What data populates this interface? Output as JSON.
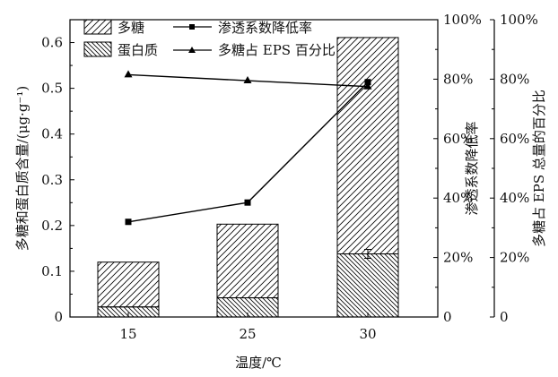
{
  "chart_data": {
    "type": "bar",
    "categories": [
      "15",
      "25",
      "30"
    ],
    "xlabel": "温度/℃",
    "ylabel": "多糖和蛋白质含量/(μg·g⁻¹)",
    "ylabel_right1": "渗透系数降低率",
    "ylabel_right2": "多糖占 EPS 总量的百分比",
    "ylim": [
      0,
      0.65
    ],
    "yticks": [
      "0",
      "0.1",
      "0.2",
      "0.3",
      "0.4",
      "0.5",
      "0.6"
    ],
    "y2lim": [
      0,
      1.0
    ],
    "y2ticks": [
      "0",
      "20%",
      "40%",
      "60%",
      "80%",
      "100%"
    ],
    "y3lim": [
      0,
      1.0
    ],
    "y3ticks": [
      "0",
      "20%",
      "40%",
      "60%",
      "80%",
      "100%"
    ],
    "stacked": true,
    "series": [
      {
        "name": "多糖",
        "kind": "bar",
        "pattern": "forward-hatch",
        "values": [
          0.098,
          0.161,
          0.473
        ]
      },
      {
        "name": "蛋白质",
        "kind": "bar",
        "pattern": "back-hatch",
        "values": [
          0.022,
          0.042,
          0.138
        ]
      },
      {
        "name": "渗透系数降低率",
        "kind": "line",
        "axis": "right1",
        "marker": "square",
        "values": [
          0.32,
          0.385,
          0.79
        ]
      },
      {
        "name": "多糖占 EPS 百分比",
        "kind": "line",
        "axis": "right2",
        "marker": "triangle",
        "values": [
          0.815,
          0.795,
          0.775
        ]
      }
    ],
    "legend_placement": "top-left",
    "grid": false,
    "colors": {
      "ink": "#000000"
    }
  }
}
